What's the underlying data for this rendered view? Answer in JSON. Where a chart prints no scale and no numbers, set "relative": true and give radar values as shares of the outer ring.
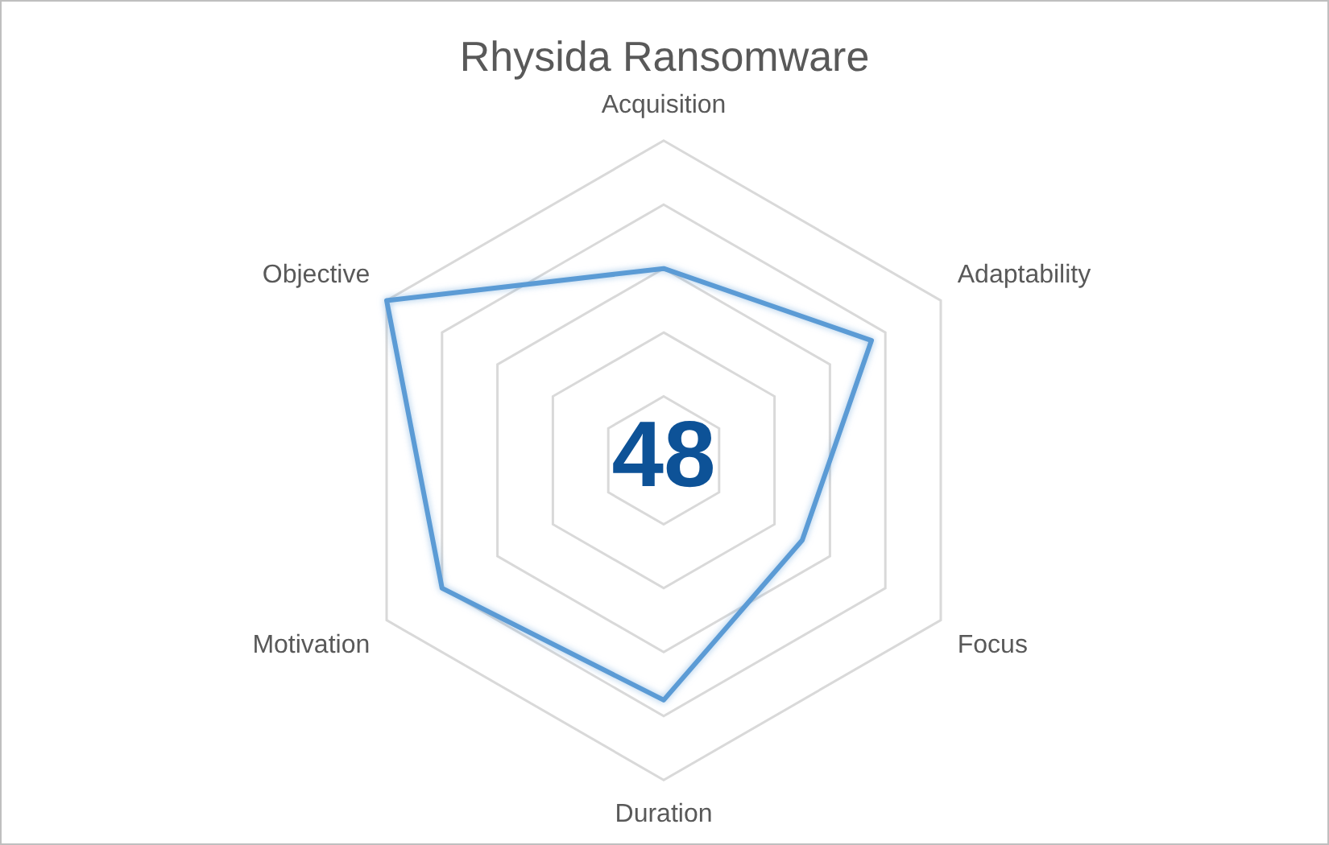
{
  "chart_data": {
    "type": "radar",
    "title": "Rhysida Ransomware",
    "categories": [
      "Acquisition",
      "Adaptability",
      "Focus",
      "Duration",
      "Motivation",
      "Objective"
    ],
    "relative": true,
    "series": [
      {
        "color": "#5b9bd5",
        "values": [
          0.6,
          0.75,
          0.5,
          0.75,
          0.8,
          1.0
        ]
      }
    ],
    "annotations": [
      "48"
    ],
    "grid": true,
    "legend": false,
    "marker": "none",
    "line_style": "solid"
  }
}
